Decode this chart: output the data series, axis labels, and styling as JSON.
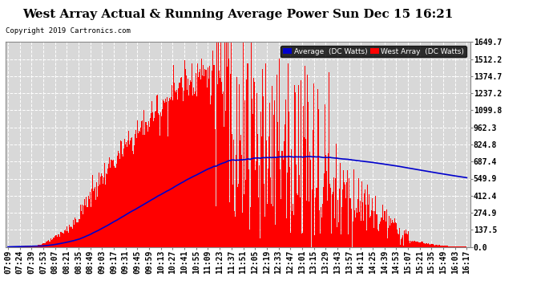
{
  "title": "West Array Actual & Running Average Power Sun Dec 15 16:21",
  "copyright": "Copyright 2019 Cartronics.com",
  "legend_avg": "Average  (DC Watts)",
  "legend_west": "West Array  (DC Watts)",
  "yticks": [
    0.0,
    137.5,
    274.9,
    412.4,
    549.9,
    687.4,
    824.8,
    962.3,
    1099.8,
    1237.2,
    1374.7,
    1512.2,
    1649.7
  ],
  "ylim": [
    0,
    1649.7
  ],
  "background_color": "#ffffff",
  "plot_bg_color": "#d8d8d8",
  "grid_color": "#ffffff",
  "bar_color": "#ff0000",
  "avg_line_color": "#0000cc",
  "title_fontsize": 11,
  "tick_fontsize": 7,
  "xtick_labels": [
    "07:09",
    "07:24",
    "07:39",
    "07:53",
    "08:07",
    "08:21",
    "08:35",
    "08:49",
    "09:03",
    "09:17",
    "09:31",
    "09:45",
    "09:59",
    "10:13",
    "10:27",
    "10:41",
    "10:55",
    "11:09",
    "11:23",
    "11:37",
    "11:51",
    "12:05",
    "12:19",
    "12:33",
    "12:47",
    "13:01",
    "13:15",
    "13:29",
    "13:43",
    "13:57",
    "14:11",
    "14:25",
    "14:39",
    "14:53",
    "15:07",
    "15:21",
    "15:35",
    "15:49",
    "16:03",
    "16:17"
  ],
  "num_bars": 560
}
